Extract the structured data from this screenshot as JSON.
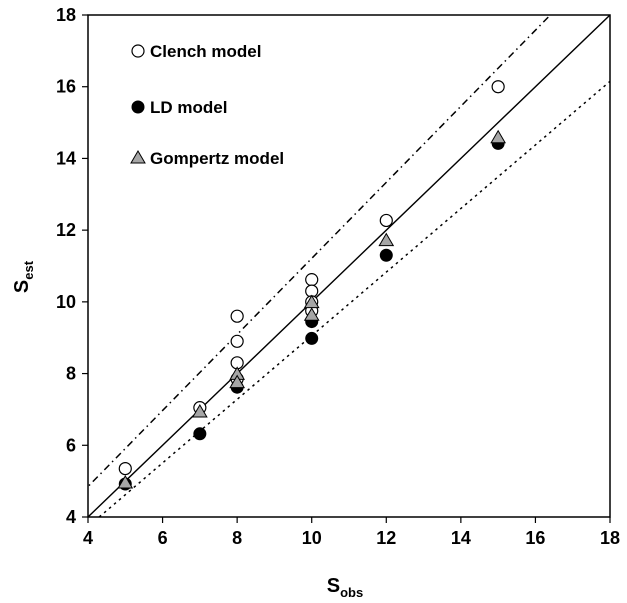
{
  "chart_data": {
    "type": "scatter",
    "xlabel": {
      "main": "S",
      "sub": "obs"
    },
    "ylabel": {
      "main": "S",
      "sub": "est"
    },
    "xlim": [
      4,
      18
    ],
    "ylim": [
      4,
      18
    ],
    "xticks": [
      "4",
      "6",
      "8",
      "10",
      "12",
      "14",
      "16",
      "18"
    ],
    "yticks": [
      "4",
      "6",
      "8",
      "10",
      "12",
      "14",
      "16",
      "18"
    ],
    "grid": false,
    "legend_position": "top-left",
    "series": [
      {
        "name": "Clench model",
        "marker": "open-circle",
        "points": [
          [
            5,
            5.35
          ],
          [
            7,
            7.05
          ],
          [
            8,
            9.6
          ],
          [
            8,
            8.9
          ],
          [
            8,
            8.3
          ],
          [
            8,
            7.85
          ],
          [
            10,
            10.62
          ],
          [
            10,
            10.3
          ],
          [
            10,
            10.0
          ],
          [
            10,
            9.75
          ],
          [
            12,
            12.27
          ],
          [
            15,
            16.0
          ]
        ]
      },
      {
        "name": "LD model",
        "marker": "filled-circle",
        "points": [
          [
            5,
            4.92
          ],
          [
            7,
            6.32
          ],
          [
            8,
            7.62
          ],
          [
            10,
            9.45
          ],
          [
            10,
            8.98
          ],
          [
            12,
            11.3
          ],
          [
            15,
            14.42
          ]
        ]
      },
      {
        "name": "Gompertz model",
        "marker": "gray-triangle",
        "points": [
          [
            5,
            4.92
          ],
          [
            7,
            6.9
          ],
          [
            8,
            7.95
          ],
          [
            8,
            7.72
          ],
          [
            10,
            9.95
          ],
          [
            10,
            9.6
          ],
          [
            12,
            11.68
          ],
          [
            15,
            14.55
          ]
        ]
      }
    ],
    "reference_lines": [
      {
        "style": "solid",
        "points": [
          [
            4,
            4
          ],
          [
            18,
            18
          ]
        ]
      },
      {
        "style": "dash-dot",
        "points": [
          [
            3.2,
            4
          ],
          [
            16.4,
            18
          ]
        ]
      },
      {
        "style": "dotted",
        "points": [
          [
            4.3,
            4
          ],
          [
            18,
            16.15
          ]
        ]
      }
    ]
  }
}
